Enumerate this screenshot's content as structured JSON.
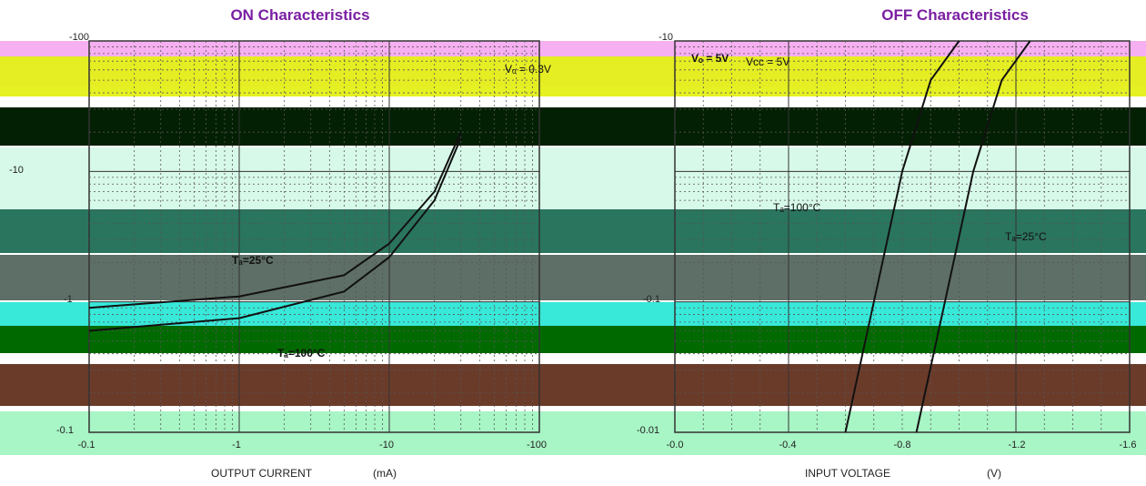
{
  "bands": [
    {
      "color": "#f5a6f0"
    },
    {
      "color": "#e4f017"
    },
    {
      "color": "#042004"
    },
    {
      "color": "#c6f7e0"
    },
    {
      "color": "#c6f7e0"
    },
    {
      "color": "#1f6e55"
    },
    {
      "color": "#55675f"
    },
    {
      "color": "#22e5d5"
    },
    {
      "color": "#006a00"
    },
    {
      "color": "#6b3b2a"
    },
    {
      "color": "#a8f5c5"
    }
  ],
  "chart_data": [
    {
      "type": "line",
      "title": "ON Characteristics",
      "xscale": "log",
      "yscale": "log",
      "xlim": [
        0.1,
        100
      ],
      "ylim": [
        0.1,
        100
      ],
      "xticks": [
        "-0.1",
        "-1",
        "-10",
        "-100"
      ],
      "yticks": [
        "-100",
        "-10",
        "-1",
        "-0.1"
      ],
      "xlabel": "OUTPUT CURRENT",
      "xlabel_unit": "(mA)",
      "annotations": [
        "Vₒ = 0.3V",
        "Tₐ=25°C",
        "Tₐ=100°C"
      ],
      "series": [
        {
          "x": [
            0.1,
            1,
            5,
            10,
            20,
            30
          ],
          "y": [
            0.9,
            1.1,
            1.6,
            2.8,
            7,
            20
          ]
        },
        {
          "x": [
            0.1,
            1,
            5,
            10,
            20,
            30
          ],
          "y": [
            0.6,
            0.75,
            1.2,
            2.2,
            6,
            18
          ]
        }
      ]
    },
    {
      "type": "line",
      "title": "OFF Characteristics",
      "xscale": "linear",
      "yscale": "log",
      "xlim": [
        0,
        1.6
      ],
      "ylim": [
        0.01,
        10
      ],
      "xticks": [
        "-0.0",
        "-0.4",
        "-0.8",
        "-1.2",
        "-1.6"
      ],
      "yticks": [
        "-10",
        "-0.1",
        "-0.01"
      ],
      "xlabel": "INPUT VOLTAGE",
      "xlabel_unit": "(V)",
      "annotations": [
        "Vₒ = 5V",
        "Vᴄᴄ = 5V",
        "Tₐ=100°C",
        "Tₐ=25°C"
      ],
      "series": [
        {
          "x": [
            0.6,
            0.7,
            0.8,
            0.9,
            1.0
          ],
          "y": [
            0.01,
            0.1,
            1,
            5,
            10
          ]
        },
        {
          "x": [
            0.85,
            0.95,
            1.05,
            1.15,
            1.25
          ],
          "y": [
            0.01,
            0.1,
            1,
            5,
            10
          ]
        }
      ]
    }
  ]
}
